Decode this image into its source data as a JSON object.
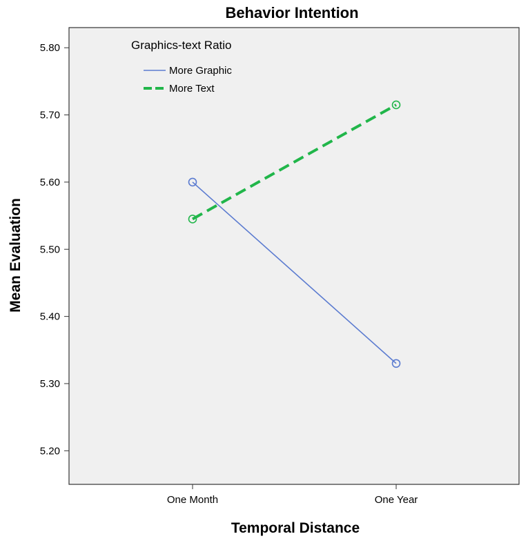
{
  "chart_data": {
    "type": "line",
    "title": "Behavior Intention",
    "xlabel": "Temporal Distance",
    "ylabel": "Mean Evaluation",
    "categories": [
      "One Month",
      "One Year"
    ],
    "ylim": [
      5.15,
      5.83
    ],
    "yticks": [
      "5.20",
      "5.30",
      "5.40",
      "5.50",
      "5.60",
      "5.70",
      "5.80"
    ],
    "legend": {
      "title": "Graphics-text Ratio",
      "placement": "top-left"
    },
    "grid": false,
    "series": [
      {
        "name": "More Graphic",
        "values": [
          5.6,
          5.33
        ],
        "color": "#5b7bd0",
        "style": "solid"
      },
      {
        "name": "More Text",
        "values": [
          5.545,
          5.715
        ],
        "color": "#21b64a",
        "style": "dashed"
      }
    ]
  }
}
